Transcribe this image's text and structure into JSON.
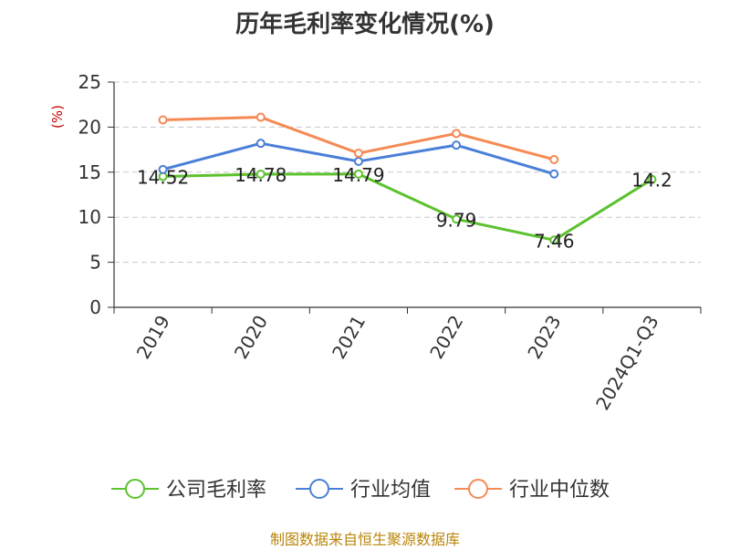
{
  "chart_data": {
    "type": "line",
    "title": "历年毛利率变化情况(%)",
    "ylabel": "(%)",
    "categories": [
      "2019",
      "2020",
      "2021",
      "2022",
      "2023",
      "2024Q1-Q3"
    ],
    "ylim": [
      0,
      25
    ],
    "yticks": [
      0,
      5,
      10,
      15,
      20,
      25
    ],
    "grid": true,
    "legend_position": "bottom",
    "series": [
      {
        "name": "公司毛利率",
        "color": "#5cc22e",
        "values": [
          14.52,
          14.78,
          14.79,
          9.79,
          7.46,
          14.2
        ],
        "labels": [
          "14.52",
          "14.78",
          "14.79",
          "9.79",
          "7.46",
          "14.2"
        ]
      },
      {
        "name": "行业均值",
        "color": "#4a7fd8",
        "values": [
          15.3,
          18.2,
          16.2,
          18.0,
          14.8,
          null
        ]
      },
      {
        "name": "行业中位数",
        "color": "#f58a55",
        "values": [
          20.8,
          21.1,
          17.1,
          19.3,
          16.4,
          null
        ]
      }
    ]
  },
  "source": "制图数据来自恒生聚源数据库"
}
